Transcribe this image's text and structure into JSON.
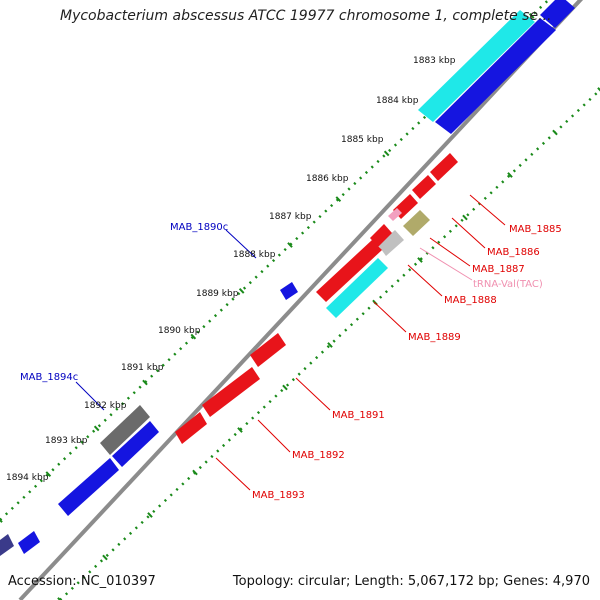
{
  "title": "Mycobacterium abscessus ATCC 19977 chromosome 1, complete se...",
  "footer": {
    "accession": "Accession: NC_010397",
    "summary": "Topology: circular; Length: 5,067,172 bp; Genes: 4,970"
  },
  "colors": {
    "forward_gene": "#e8141a",
    "reverse_gene": "#1515e0",
    "rrna": "#1fe8e8",
    "pseudo": "#6b6b6b",
    "trna": "#f2a0c0",
    "misc": "#b0aa6a",
    "label_red": "#e00000",
    "label_blue": "#0000c0",
    "label_pink": "#f090b0",
    "backbone": "#808080",
    "tick": "#1a8a1a"
  },
  "ticks": [
    "1883 kbp",
    "1884 kbp",
    "1885 kbp",
    "1886 kbp",
    "1887 kbp",
    "1888 kbp",
    "1889 kbp",
    "1890 kbp",
    "1891 kbp",
    "1892 kbp",
    "1893 kbp",
    "1894 kbp"
  ],
  "gene_labels": [
    {
      "text": "MAB_1885",
      "kind": "forward"
    },
    {
      "text": "MAB_1886",
      "kind": "forward"
    },
    {
      "text": "MAB_1887",
      "kind": "forward"
    },
    {
      "text": "tRNA-Val(TAC)",
      "kind": "trna"
    },
    {
      "text": "MAB_1888",
      "kind": "forward"
    },
    {
      "text": "MAB_1889",
      "kind": "forward"
    },
    {
      "text": "MAB_1891",
      "kind": "forward"
    },
    {
      "text": "MAB_1892",
      "kind": "forward"
    },
    {
      "text": "MAB_1893",
      "kind": "forward"
    },
    {
      "text": "MAB_1890c",
      "kind": "reverse"
    },
    {
      "text": "MAB_1894c",
      "kind": "reverse"
    }
  ]
}
